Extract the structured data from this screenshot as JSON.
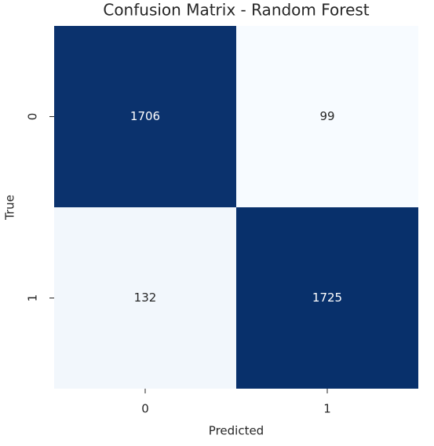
{
  "chart_data": {
    "type": "heatmap",
    "title": "Confusion Matrix - Random Forest",
    "x_label": "Predicted",
    "y_label": "True",
    "x_categories": [
      "0",
      "1"
    ],
    "y_categories": [
      "0",
      "1"
    ],
    "values": [
      [
        1706,
        99
      ],
      [
        132,
        1725
      ]
    ],
    "colors": [
      "#f7fbff",
      "#08306b"
    ]
  }
}
